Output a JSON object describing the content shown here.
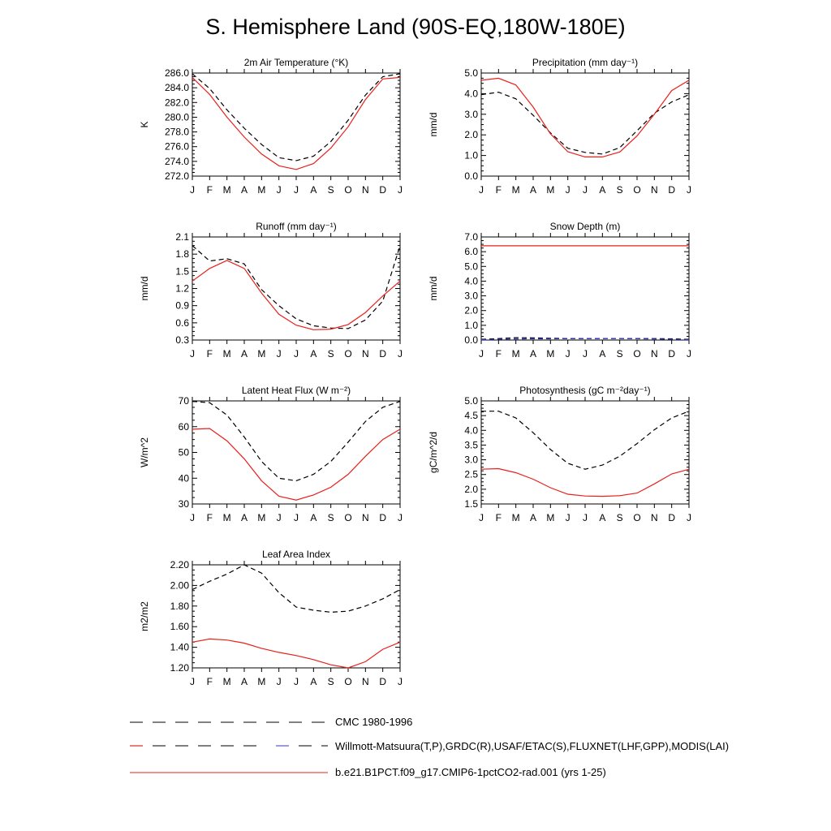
{
  "page_title": "S. Hemisphere Land (90S-EQ,180W-180E)",
  "legend": [
    {
      "label": "CMC 1980-1996",
      "style": "dash",
      "color": "#000000"
    },
    {
      "label": "Willmott-Matsuura(T,P),GRDC(R),USAF/ETAC(S),FLUXNET(LHF,GPP),MODIS(LAI)",
      "style": "dash-multi",
      "color": "#cc0000"
    },
    {
      "label": "b.e21.B1PCT.f09_g17.CMIP6-1pctCO2-rad.001 (yrs 1-25)",
      "style": "solid",
      "color": "#e8201c"
    }
  ],
  "chart_data": [
    {
      "type": "line",
      "title": "2m Air Temperature (°K)",
      "ylabel": "K",
      "categories": [
        "J",
        "F",
        "M",
        "A",
        "M",
        "J",
        "J",
        "A",
        "S",
        "O",
        "N",
        "D",
        "J"
      ],
      "ylim": [
        272.0,
        286.0
      ],
      "yticks": [
        "272.0",
        "274.0",
        "276.0",
        "278.0",
        "280.0",
        "282.0",
        "284.0",
        "286.0"
      ],
      "series": [
        {
          "style": "dash",
          "color": "#000000",
          "values": [
            285.9,
            283.9,
            281.0,
            278.5,
            276.3,
            274.5,
            274.1,
            274.7,
            276.7,
            279.6,
            283.0,
            285.5,
            285.9
          ]
        },
        {
          "style": "solid",
          "color": "#e8201c",
          "values": [
            285.4,
            283.1,
            280.0,
            277.3,
            275.0,
            273.4,
            272.9,
            273.7,
            275.8,
            278.7,
            282.4,
            285.2,
            285.4
          ]
        }
      ]
    },
    {
      "type": "line",
      "title": "Precipitation (mm day⁻¹)",
      "ylabel": "mm/d",
      "categories": [
        "J",
        "F",
        "M",
        "A",
        "M",
        "J",
        "J",
        "A",
        "S",
        "O",
        "N",
        "D",
        "J"
      ],
      "ylim": [
        0.0,
        5.0
      ],
      "yticks": [
        "0.0",
        "1.0",
        "2.0",
        "3.0",
        "4.0",
        "5.0"
      ],
      "series": [
        {
          "style": "dash",
          "color": "#000000",
          "values": [
            3.95,
            4.07,
            3.75,
            2.95,
            2.1,
            1.35,
            1.15,
            1.07,
            1.38,
            2.2,
            3.05,
            3.6,
            3.95
          ]
        },
        {
          "style": "solid",
          "color": "#e8201c",
          "values": [
            4.65,
            4.75,
            4.42,
            3.35,
            2.05,
            1.18,
            0.93,
            0.93,
            1.17,
            1.95,
            3.0,
            4.15,
            4.65
          ]
        }
      ]
    },
    {
      "type": "line",
      "title": "Runoff (mm day⁻¹)",
      "ylabel": "mm/d",
      "categories": [
        "J",
        "F",
        "M",
        "A",
        "M",
        "J",
        "J",
        "A",
        "S",
        "O",
        "N",
        "D",
        "J"
      ],
      "ylim": [
        0.3,
        2.1
      ],
      "yticks": [
        "0.3",
        "0.6",
        "0.9",
        "1.2",
        "1.5",
        "1.8",
        "2.1"
      ],
      "series": [
        {
          "style": "dash",
          "color": "#000000",
          "values": [
            1.95,
            1.68,
            1.72,
            1.63,
            1.18,
            0.9,
            0.67,
            0.55,
            0.51,
            0.5,
            0.65,
            0.98,
            1.95
          ]
        },
        {
          "style": "solid",
          "color": "#e8201c",
          "values": [
            1.33,
            1.55,
            1.69,
            1.55,
            1.12,
            0.75,
            0.56,
            0.48,
            0.49,
            0.57,
            0.78,
            1.07,
            1.33
          ]
        }
      ]
    },
    {
      "type": "line",
      "title": "Snow Depth (m)",
      "ylabel": "mm/d",
      "categories": [
        "J",
        "F",
        "M",
        "A",
        "M",
        "J",
        "J",
        "A",
        "S",
        "O",
        "N",
        "D",
        "J"
      ],
      "ylim": [
        0.0,
        7.0
      ],
      "yticks": [
        "0.0",
        "1.0",
        "2.0",
        "3.0",
        "4.0",
        "5.0",
        "6.0",
        "7.0"
      ],
      "series": [
        {
          "style": "dash",
          "color": "#000000",
          "values": [
            0.05,
            0.1,
            0.16,
            0.15,
            0.12,
            0.1,
            0.1,
            0.1,
            0.1,
            0.1,
            0.1,
            0.08,
            0.05
          ]
        },
        {
          "style": "dash",
          "color": "#3333cc",
          "values": [
            0.03,
            0.05,
            0.07,
            0.08,
            0.08,
            0.09,
            0.09,
            0.1,
            0.1,
            0.09,
            0.07,
            0.05,
            0.03
          ]
        },
        {
          "style": "solid",
          "color": "#e8201c",
          "values": [
            6.4,
            6.4,
            6.4,
            6.4,
            6.4,
            6.4,
            6.4,
            6.4,
            6.4,
            6.4,
            6.4,
            6.4,
            6.4
          ]
        }
      ]
    },
    {
      "type": "line",
      "title": "Latent Heat Flux (W m⁻²)",
      "ylabel": "W/m^2",
      "categories": [
        "J",
        "F",
        "M",
        "A",
        "M",
        "J",
        "J",
        "A",
        "S",
        "O",
        "N",
        "D",
        "J"
      ],
      "ylim": [
        30,
        70
      ],
      "yticks": [
        "30",
        "40",
        "50",
        "60",
        "70"
      ],
      "series": [
        {
          "style": "dash",
          "color": "#000000",
          "values": [
            69.8,
            69.3,
            64.5,
            56.0,
            46.5,
            40.0,
            39.0,
            41.5,
            46.5,
            54.0,
            62.0,
            67.5,
            69.8
          ]
        },
        {
          "style": "solid",
          "color": "#e8201c",
          "values": [
            59.0,
            59.3,
            54.5,
            47.5,
            39.0,
            33.0,
            31.5,
            33.5,
            36.5,
            41.5,
            48.5,
            55.0,
            59.0
          ]
        }
      ]
    },
    {
      "type": "line",
      "title": "Photosynthesis (gC m⁻²day⁻¹)",
      "ylabel": "gC/m^2/d",
      "categories": [
        "J",
        "F",
        "M",
        "A",
        "M",
        "J",
        "J",
        "A",
        "S",
        "O",
        "N",
        "D",
        "J"
      ],
      "ylim": [
        1.5,
        5.0
      ],
      "yticks": [
        "1.5",
        "2.0",
        "2.5",
        "3.0",
        "3.5",
        "4.0",
        "4.5",
        "5.0"
      ],
      "series": [
        {
          "style": "dash",
          "color": "#000000",
          "values": [
            4.65,
            4.65,
            4.42,
            3.92,
            3.35,
            2.88,
            2.68,
            2.82,
            3.12,
            3.55,
            4.02,
            4.42,
            4.65
          ]
        },
        {
          "style": "solid",
          "color": "#e8201c",
          "values": [
            2.68,
            2.7,
            2.56,
            2.34,
            2.05,
            1.83,
            1.77,
            1.76,
            1.78,
            1.87,
            2.18,
            2.52,
            2.68
          ]
        }
      ]
    },
    {
      "type": "line",
      "title": "Leaf Area Index",
      "ylabel": "m2/m2",
      "categories": [
        "J",
        "F",
        "M",
        "A",
        "M",
        "J",
        "J",
        "A",
        "S",
        "O",
        "N",
        "D",
        "J"
      ],
      "ylim": [
        1.2,
        2.2
      ],
      "yticks": [
        "1.20",
        "1.40",
        "1.60",
        "1.80",
        "2.00",
        "2.20"
      ],
      "series": [
        {
          "style": "dash",
          "color": "#000000",
          "values": [
            1.96,
            2.04,
            2.11,
            2.2,
            2.12,
            1.93,
            1.79,
            1.76,
            1.74,
            1.75,
            1.8,
            1.87,
            1.96
          ]
        },
        {
          "style": "solid",
          "color": "#e8201c",
          "values": [
            1.45,
            1.48,
            1.47,
            1.44,
            1.39,
            1.35,
            1.32,
            1.28,
            1.23,
            1.2,
            1.26,
            1.38,
            1.45
          ]
        }
      ]
    }
  ]
}
